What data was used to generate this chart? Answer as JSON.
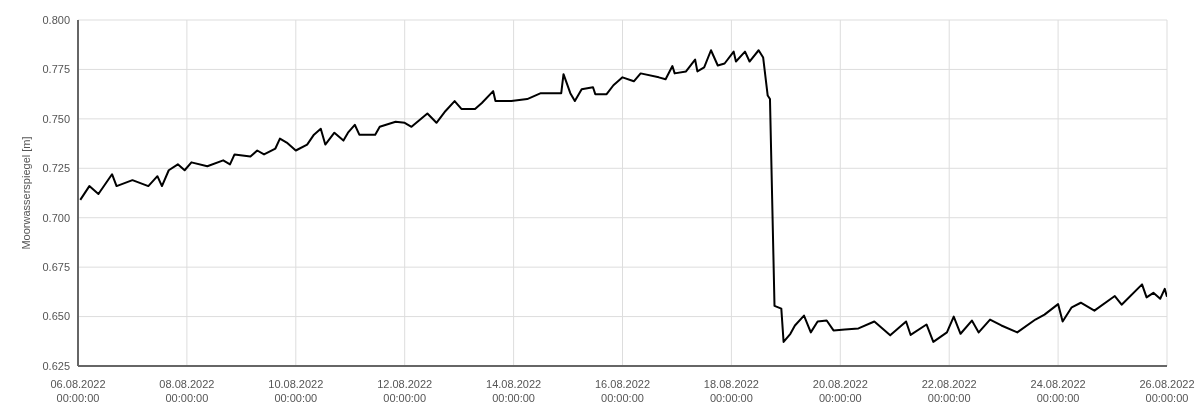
{
  "chart_data": {
    "type": "line",
    "ylabel": "Moorwasserspiegel [m]",
    "xlim": [
      "2022-08-06",
      "2022-08-26"
    ],
    "xticks": [
      {
        "value": "2022-08-06",
        "label": "06.08.2022 00:00:00"
      },
      {
        "value": "2022-08-08",
        "label": "08.08.2022 00:00:00"
      },
      {
        "value": "2022-08-10",
        "label": "10.08.2022 00:00:00"
      },
      {
        "value": "2022-08-12",
        "label": "12.08.2022 00:00:00"
      },
      {
        "value": "2022-08-14",
        "label": "14.08.2022 00:00:00"
      },
      {
        "value": "2022-08-16",
        "label": "16.08.2022 00:00:00"
      },
      {
        "value": "2022-08-18",
        "label": "18.08.2022 00:00:00"
      },
      {
        "value": "2022-08-20",
        "label": "20.08.2022 00:00:00"
      },
      {
        "value": "2022-08-22",
        "label": "22.08.2022 00:00:00"
      },
      {
        "value": "2022-08-24",
        "label": "24.08.2022 00:00:00"
      },
      {
        "value": "2022-08-26",
        "label": "26.08.2022 00:00:00"
      }
    ],
    "ylim": [
      0.625,
      0.8
    ],
    "yticks": [
      {
        "value": 0.625,
        "label": "0.625"
      },
      {
        "value": 0.65,
        "label": "0.650"
      },
      {
        "value": 0.675,
        "label": "0.675"
      },
      {
        "value": 0.7,
        "label": "0.700"
      },
      {
        "value": 0.725,
        "label": "0.725"
      },
      {
        "value": 0.75,
        "label": "0.750"
      },
      {
        "value": 0.775,
        "label": "0.775"
      },
      {
        "value": 0.8,
        "label": "0.800"
      }
    ],
    "grid": true,
    "marker": "none",
    "line_style": "solid",
    "x": [
      "2022-08-06T01:00",
      "2022-08-06T05:00",
      "2022-08-06T09:00",
      "2022-08-06T15:00",
      "2022-08-06T17:00",
      "2022-08-07T00:00",
      "2022-08-07T07:00",
      "2022-08-07T11:00",
      "2022-08-07T13:00",
      "2022-08-07T16:00",
      "2022-08-07T20:00",
      "2022-08-07T23:00",
      "2022-08-08T02:00",
      "2022-08-08T09:00",
      "2022-08-08T16:00",
      "2022-08-08T19:00",
      "2022-08-08T21:00",
      "2022-08-09T04:00",
      "2022-08-09T07:00",
      "2022-08-09T10:00",
      "2022-08-09T15:00",
      "2022-08-09T17:00",
      "2022-08-09T20:00",
      "2022-08-10T00:00",
      "2022-08-10T05:00",
      "2022-08-10T08:00",
      "2022-08-10T11:00",
      "2022-08-10T13:00",
      "2022-08-10T17:00",
      "2022-08-10T21:00",
      "2022-08-10T23:00",
      "2022-08-11T02:00",
      "2022-08-11T04:00",
      "2022-08-11T11:00",
      "2022-08-11T13:00",
      "2022-08-11T20:00",
      "2022-08-12T00:00",
      "2022-08-12T03:00",
      "2022-08-12T10:00",
      "2022-08-12T14:00",
      "2022-08-12T18:00",
      "2022-08-12T22:00",
      "2022-08-13T01:00",
      "2022-08-13T07:00",
      "2022-08-13T10:00",
      "2022-08-13T15:00",
      "2022-08-13T16:00",
      "2022-08-13T23:00",
      "2022-08-14T06:00",
      "2022-08-14T12:00",
      "2022-08-14T21:00",
      "2022-08-14T22:00",
      "2022-08-15T01:00",
      "2022-08-15T03:00",
      "2022-08-15T06:00",
      "2022-08-15T11:00",
      "2022-08-15T12:00",
      "2022-08-15T17:00",
      "2022-08-15T20:00",
      "2022-08-16T00:00",
      "2022-08-16T05:00",
      "2022-08-16T08:00",
      "2022-08-16T16:00",
      "2022-08-16T19:00",
      "2022-08-16T22:00",
      "2022-08-16T23:00",
      "2022-08-17T04:00",
      "2022-08-17T08:00",
      "2022-08-17T09:00",
      "2022-08-17T12:00",
      "2022-08-17T15:00",
      "2022-08-17T18:00",
      "2022-08-17T21:00",
      "2022-08-18T01:00",
      "2022-08-18T02:00",
      "2022-08-18T06:00",
      "2022-08-18T08:00",
      "2022-08-18T12:00",
      "2022-08-18T14:00",
      "2022-08-18T16:00",
      "2022-08-18T17:00",
      "2022-08-18T19:00",
      "2022-08-18T22:00",
      "2022-08-18T23:00",
      "2022-08-19T02:00",
      "2022-08-19T04:00",
      "2022-08-19T08:00",
      "2022-08-19T11:00",
      "2022-08-19T14:00",
      "2022-08-19T18:00",
      "2022-08-19T21:00",
      "2022-08-20T02:00",
      "2022-08-20T08:00",
      "2022-08-20T15:00",
      "2022-08-20T22:00",
      "2022-08-21T05:00",
      "2022-08-21T07:00",
      "2022-08-21T14:00",
      "2022-08-21T17:00",
      "2022-08-21T23:00",
      "2022-08-22T02:00",
      "2022-08-22T05:00",
      "2022-08-22T10:00",
      "2022-08-22T13:00",
      "2022-08-22T18:00",
      "2022-08-22T23:00",
      "2022-08-23T06:00",
      "2022-08-23T14:00",
      "2022-08-23T18:00",
      "2022-08-24T00:00",
      "2022-08-24T02:00",
      "2022-08-24T06:00",
      "2022-08-24T10:00",
      "2022-08-24T16:00",
      "2022-08-25T01:00",
      "2022-08-25T04:00",
      "2022-08-25T13:00",
      "2022-08-25T15:00",
      "2022-08-25T18:00",
      "2022-08-25T21:00",
      "2022-08-25T23:00",
      "2022-08-26T00:00"
    ],
    "series": [
      {
        "color": "#000000",
        "values": [
          0.709,
          0.716,
          0.712,
          0.722,
          0.716,
          0.719,
          0.716,
          0.721,
          0.716,
          0.724,
          0.727,
          0.724,
          0.728,
          0.726,
          0.729,
          0.727,
          0.732,
          0.731,
          0.734,
          0.732,
          0.735,
          0.74,
          0.738,
          0.734,
          0.737,
          0.742,
          0.745,
          0.737,
          0.743,
          0.739,
          0.743,
          0.747,
          0.742,
          0.742,
          0.746,
          0.7485,
          0.748,
          0.746,
          0.7527,
          0.748,
          0.754,
          0.759,
          0.755,
          0.755,
          0.758,
          0.764,
          0.759,
          0.759,
          0.76,
          0.763,
          0.763,
          0.7726,
          0.763,
          0.759,
          0.765,
          0.766,
          0.7625,
          0.7625,
          0.767,
          0.771,
          0.769,
          0.773,
          0.771,
          0.77,
          0.7767,
          0.773,
          0.774,
          0.78,
          0.774,
          0.776,
          0.7847,
          0.777,
          0.778,
          0.784,
          0.779,
          0.784,
          0.779,
          0.7847,
          0.781,
          0.7618,
          0.76,
          0.6554,
          0.654,
          0.6372,
          0.6413,
          0.6455,
          0.6505,
          0.642,
          0.6475,
          0.648,
          0.643,
          0.6435,
          0.644,
          0.6475,
          0.6405,
          0.6475,
          0.6407,
          0.646,
          0.6372,
          0.642,
          0.65,
          0.6413,
          0.648,
          0.642,
          0.6485,
          0.6455,
          0.642,
          0.6485,
          0.651,
          0.6563,
          0.6475,
          0.6547,
          0.657,
          0.653,
          0.6604,
          0.656,
          0.6663,
          0.6597,
          0.662,
          0.659,
          0.664,
          0.66
        ]
      }
    ]
  }
}
